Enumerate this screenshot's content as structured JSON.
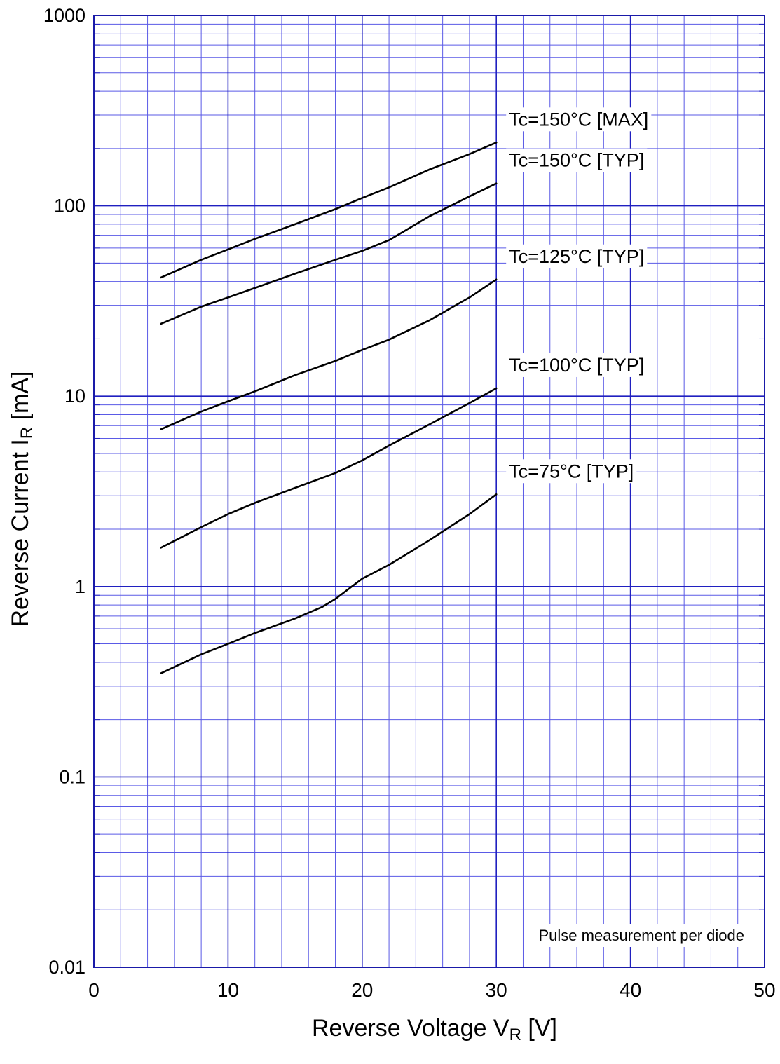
{
  "chart_data": {
    "type": "line",
    "title": "",
    "xlabel": {
      "main": "Reverse Voltage  V",
      "subscript": "R",
      "unit": "  [V]"
    },
    "ylabel": {
      "main": "Reverse Current  I",
      "subscript": "R",
      "unit": "  [mA]"
    },
    "x_scale": "linear",
    "y_scale": "log",
    "xlim": [
      0,
      50
    ],
    "ylim": [
      0.01,
      1000
    ],
    "x_ticks": [
      0,
      10,
      20,
      30,
      40,
      50
    ],
    "x_tick_labels": [
      "0",
      "10",
      "20",
      "30",
      "40",
      "50"
    ],
    "y_ticks": [
      0.01,
      0.1,
      1,
      10,
      100,
      1000
    ],
    "y_tick_labels": [
      "0.01",
      "0.1",
      "1",
      "10",
      "100",
      "1000"
    ],
    "grid": true,
    "annotation": "Pulse measurement per diode",
    "series": [
      {
        "name": "Tc=150°C [MAX]",
        "x": [
          5,
          8,
          10,
          12,
          15,
          18,
          20,
          22,
          25,
          28,
          30
        ],
        "values": [
          42,
          52,
          59,
          67,
          80,
          96,
          110,
          125,
          155,
          187,
          215
        ]
      },
      {
        "name": "Tc=150°C [TYP]",
        "x": [
          5,
          8,
          10,
          12,
          15,
          18,
          20,
          22,
          25,
          28,
          30
        ],
        "values": [
          24,
          29.5,
          33,
          37,
          44,
          52,
          58,
          66,
          88,
          112,
          131
        ]
      },
      {
        "name": "Tc=125°C [TYP]",
        "x": [
          5,
          8,
          10,
          12,
          15,
          18,
          20,
          22,
          25,
          28,
          30
        ],
        "values": [
          6.7,
          8.3,
          9.4,
          10.6,
          12.9,
          15.3,
          17.5,
          19.8,
          25,
          33,
          41
        ]
      },
      {
        "name": "Tc=100°C [TYP]",
        "x": [
          5,
          8,
          10,
          12,
          15,
          18,
          20,
          22,
          25,
          28,
          30
        ],
        "values": [
          1.6,
          2.05,
          2.4,
          2.75,
          3.3,
          3.95,
          4.6,
          5.5,
          7.1,
          9.2,
          11
        ]
      },
      {
        "name": "Tc=75°C [TYP]",
        "x": [
          5,
          8,
          10,
          12,
          15,
          17,
          18,
          20,
          22,
          25,
          28,
          30
        ],
        "values": [
          0.35,
          0.44,
          0.5,
          0.57,
          0.68,
          0.78,
          0.86,
          1.1,
          1.3,
          1.75,
          2.4,
          3.05
        ]
      }
    ]
  }
}
